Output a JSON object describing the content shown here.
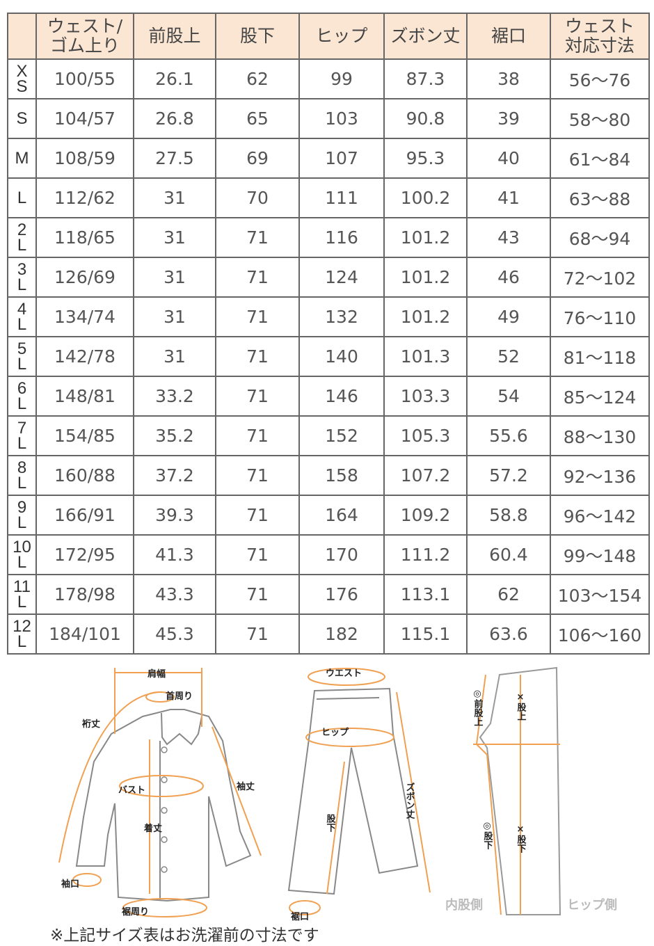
{
  "table": {
    "headers": [
      "",
      "ウェスト/\nゴム上り",
      "前股上",
      "股下",
      "ヒップ",
      "ズボン丈",
      "裾口",
      "ウェスト\n対応寸法"
    ],
    "rows": [
      {
        "size": [
          "X",
          "S"
        ],
        "values": [
          "100/55",
          "26.1",
          "62",
          "99",
          "87.3",
          "38",
          "56～76"
        ]
      },
      {
        "size": [
          "S"
        ],
        "values": [
          "104/57",
          "26.8",
          "65",
          "103",
          "90.8",
          "39",
          "58～80"
        ]
      },
      {
        "size": [
          "M"
        ],
        "values": [
          "108/59",
          "27.5",
          "69",
          "107",
          "95.3",
          "40",
          "61～84"
        ]
      },
      {
        "size": [
          "L"
        ],
        "values": [
          "112/62",
          "31",
          "70",
          "111",
          "100.2",
          "41",
          "63～88"
        ]
      },
      {
        "size": [
          "2",
          "L"
        ],
        "values": [
          "118/65",
          "31",
          "71",
          "116",
          "101.2",
          "43",
          "68～94"
        ]
      },
      {
        "size": [
          "3",
          "L"
        ],
        "values": [
          "126/69",
          "31",
          "71",
          "124",
          "101.2",
          "46",
          "72～102"
        ]
      },
      {
        "size": [
          "4",
          "L"
        ],
        "values": [
          "134/74",
          "31",
          "71",
          "132",
          "101.2",
          "49",
          "76～110"
        ]
      },
      {
        "size": [
          "5",
          "L"
        ],
        "values": [
          "142/78",
          "31",
          "71",
          "140",
          "101.3",
          "52",
          "81～118"
        ]
      },
      {
        "size": [
          "6",
          "L"
        ],
        "values": [
          "148/81",
          "33.2",
          "71",
          "146",
          "103.3",
          "54",
          "85～124"
        ]
      },
      {
        "size": [
          "7",
          "L"
        ],
        "values": [
          "154/85",
          "35.2",
          "71",
          "152",
          "105.3",
          "55.6",
          "88～130"
        ]
      },
      {
        "size": [
          "8",
          "L"
        ],
        "values": [
          "160/88",
          "37.2",
          "71",
          "158",
          "107.2",
          "57.2",
          "92～136"
        ]
      },
      {
        "size": [
          "9",
          "L"
        ],
        "values": [
          "166/91",
          "39.3",
          "71",
          "164",
          "109.2",
          "58.8",
          "96～142"
        ]
      },
      {
        "size": [
          "10",
          "L"
        ],
        "values": [
          "172/95",
          "41.3",
          "71",
          "170",
          "111.2",
          "60.4",
          "99～148"
        ]
      },
      {
        "size": [
          "11",
          "L"
        ],
        "values": [
          "178/98",
          "43.3",
          "71",
          "176",
          "113.1",
          "62",
          "103～154"
        ]
      },
      {
        "size": [
          "12",
          "L"
        ],
        "values": [
          "184/101",
          "45.3",
          "71",
          "182",
          "115.1",
          "63.6",
          "106～160"
        ]
      }
    ]
  },
  "diagram": {
    "accent_color": "#f0a050",
    "shirt": {
      "shoulder": "肩幅",
      "neck": "首周り",
      "yuki": "裄丈",
      "bust": "バスト",
      "sleeve": "袖丈",
      "length": "着丈",
      "cuff": "袖口",
      "hem": "裾周り"
    },
    "pants": {
      "waist": "ウエスト",
      "hip": "ヒップ",
      "inseam": "股下",
      "length": "ズボン丈",
      "hem": "裾口"
    },
    "side": {
      "front_rise": "◎前股上",
      "inseam_ok": "◎股下",
      "rise_ng": "×股上",
      "inseam_ng": "×股下",
      "inner": "内股側",
      "hip_side": "ヒップ側"
    }
  },
  "note": "※上記サイズ表はお洗濯前の寸法です"
}
